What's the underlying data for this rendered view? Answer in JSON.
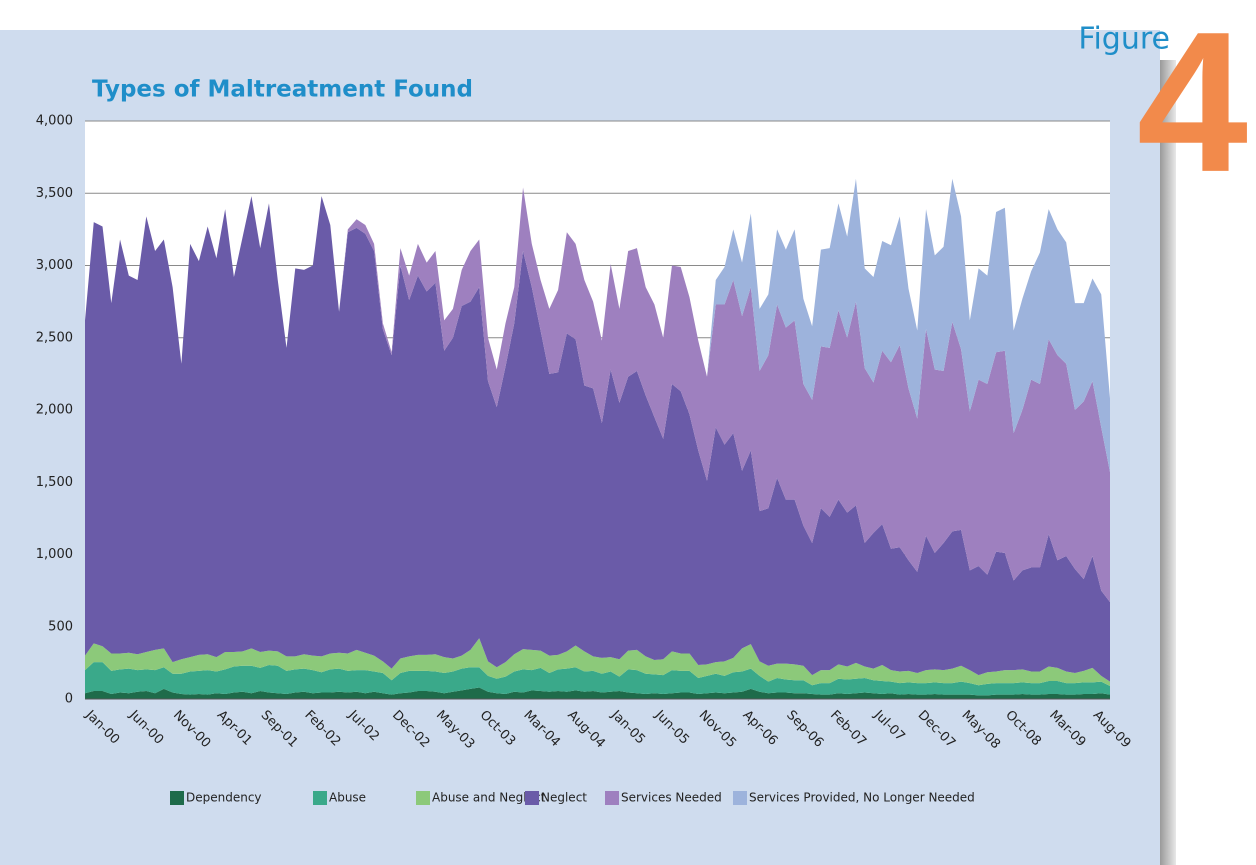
{
  "figure_label": "Figure",
  "figure_number": "4",
  "chart_data": {
    "type": "stacked_area",
    "title": "Types of Maltreatment Found",
    "categories": [
      null,
      "Jan-00",
      null,
      null,
      null,
      null,
      "Jun-00",
      null,
      null,
      null,
      null,
      "Nov-00",
      null,
      null,
      null,
      null,
      "Apr-01",
      null,
      null,
      null,
      null,
      "Sep-01",
      null,
      null,
      null,
      null,
      "Feb-02",
      null,
      null,
      null,
      null,
      "Jul-02",
      null,
      null,
      null,
      null,
      "Dec-02",
      null,
      null,
      null,
      null,
      "May-03",
      null,
      null,
      null,
      null,
      "Oct-03",
      null,
      null,
      null,
      null,
      "Mar-04",
      null,
      null,
      null,
      null,
      "Aug-04",
      null,
      null,
      null,
      null,
      "Jan-05",
      null,
      null,
      null,
      null,
      "Jun-05",
      null,
      null,
      null,
      null,
      "Nov-05",
      null,
      null,
      null,
      null,
      "Apr-06",
      null,
      null,
      null,
      null,
      "Sep-06",
      null,
      null,
      null,
      null,
      "Feb-07",
      null,
      null,
      null,
      null,
      "Jul-07",
      null,
      null,
      null,
      null,
      "Dec-07",
      null,
      null,
      null,
      null,
      "May-08",
      null,
      null,
      null,
      null,
      "Oct-08",
      null,
      null,
      null,
      null,
      "Mar-09",
      null,
      null,
      null,
      null,
      "Aug-09",
      null
    ],
    "series": [
      {
        "name": "Dependency",
        "color": "#1e6b4a",
        "values": [
          40,
          55,
          55,
          35,
          45,
          40,
          50,
          55,
          40,
          70,
          45,
          35,
          30,
          35,
          30,
          40,
          35,
          45,
          50,
          40,
          55,
          45,
          40,
          35,
          45,
          50,
          40,
          45,
          45,
          50,
          45,
          50,
          40,
          50,
          40,
          30,
          40,
          45,
          55,
          55,
          50,
          40,
          50,
          60,
          70,
          80,
          50,
          40,
          35,
          50,
          45,
          60,
          55,
          50,
          55,
          50,
          60,
          50,
          55,
          45,
          50,
          55,
          45,
          40,
          35,
          40,
          35,
          40,
          45,
          45,
          35,
          40,
          45,
          40,
          45,
          50,
          70,
          50,
          40,
          45,
          45,
          40,
          40,
          35,
          30,
          30,
          40,
          35,
          40,
          45,
          40,
          35,
          40,
          30,
          35,
          30,
          30,
          35,
          30,
          30,
          30,
          30,
          25,
          25,
          30,
          30,
          30,
          35,
          30,
          30,
          35,
          35,
          30,
          30,
          35,
          35,
          40,
          30
        ]
      },
      {
        "name": "Abuse",
        "color": "#3aa98a",
        "values": [
          160,
          200,
          200,
          160,
          160,
          170,
          150,
          150,
          160,
          150,
          130,
          140,
          160,
          160,
          170,
          150,
          170,
          180,
          180,
          190,
          160,
          190,
          190,
          160,
          160,
          160,
          160,
          140,
          160,
          160,
          150,
          150,
          160,
          140,
          140,
          100,
          140,
          150,
          140,
          140,
          140,
          140,
          140,
          150,
          150,
          140,
          110,
          100,
          120,
          140,
          160,
          140,
          160,
          130,
          150,
          160,
          160,
          140,
          140,
          130,
          140,
          100,
          160,
          160,
          140,
          130,
          130,
          160,
          150,
          150,
          110,
          120,
          130,
          120,
          140,
          140,
          140,
          110,
          80,
          100,
          90,
          90,
          90,
          60,
          80,
          80,
          100,
          100,
          100,
          100,
          90,
          90,
          80,
          80,
          80,
          80,
          80,
          80,
          80,
          80,
          90,
          80,
          70,
          80,
          80,
          80,
          80,
          80,
          80,
          80,
          90,
          90,
          80,
          80,
          80,
          80,
          80,
          60
        ]
      },
      {
        "name": "Abuse and Neglect",
        "color": "#8cc97a",
        "values": [
          100,
          130,
          110,
          120,
          110,
          110,
          110,
          120,
          140,
          130,
          80,
          100,
          100,
          110,
          110,
          100,
          120,
          100,
          100,
          120,
          110,
          100,
          100,
          100,
          90,
          100,
          100,
          110,
          110,
          110,
          120,
          140,
          120,
          110,
          80,
          80,
          100,
          100,
          110,
          110,
          120,
          110,
          90,
          90,
          120,
          200,
          100,
          80,
          100,
          120,
          140,
          140,
          120,
          120,
          100,
          120,
          150,
          140,
          100,
          110,
          100,
          120,
          130,
          140,
          120,
          100,
          110,
          130,
          120,
          120,
          90,
          80,
          80,
          100,
          100,
          160,
          170,
          100,
          110,
          100,
          110,
          110,
          100,
          70,
          90,
          90,
          100,
          90,
          110,
          80,
          80,
          110,
          80,
          80,
          80,
          70,
          90,
          90,
          90,
          100,
          110,
          90,
          70,
          80,
          80,
          90,
          90,
          90,
          80,
          80,
          100,
          90,
          80,
          70,
          80,
          100,
          40,
          30
        ]
      },
      {
        "name": "Neglect",
        "color": "#6a5ba8",
        "values": [
          2320,
          2915,
          2905,
          2425,
          2865,
          2610,
          2590,
          3015,
          2760,
          2830,
          2595,
          2045,
          2860,
          2725,
          2960,
          2760,
          3065,
          2595,
          2870,
          3130,
          2795,
          3095,
          2570,
          2135,
          2685,
          2660,
          2700,
          3185,
          2965,
          2360,
          2915,
          2920,
          2900,
          2800,
          2300,
          2170,
          2720,
          2465,
          2625,
          2515,
          2570,
          2120,
          2220,
          2420,
          2410,
          2430,
          1940,
          1800,
          2045,
          2290,
          2755,
          2510,
          2215,
          1950,
          1955,
          2200,
          2120,
          1840,
          1855,
          1625,
          1990,
          1775,
          1895,
          1930,
          1805,
          1680,
          1525,
          1850,
          1815,
          1655,
          1485,
          1270,
          1625,
          1500,
          1555,
          1230,
          1340,
          1040,
          1090,
          1285,
          1135,
          1140,
          970,
          915,
          1120,
          1060,
          1140,
          1065,
          1090,
          855,
          940,
          975,
          840,
          860,
          765,
          700,
          930,
          805,
          880,
          950,
          940,
          690,
          755,
          675,
          830,
          810,
          620,
          685,
          720,
          720,
          915,
          745,
          800,
          720,
          635,
          775,
          590,
          550
        ]
      },
      {
        "name": "Services Needed",
        "color": "#9e80bf",
        "values": [
          0,
          0,
          0,
          0,
          0,
          0,
          0,
          0,
          0,
          0,
          0,
          0,
          0,
          0,
          0,
          0,
          0,
          0,
          0,
          0,
          0,
          0,
          0,
          0,
          0,
          0,
          0,
          0,
          0,
          0,
          20,
          60,
          60,
          50,
          40,
          20,
          120,
          170,
          220,
          200,
          220,
          210,
          200,
          250,
          350,
          330,
          300,
          260,
          300,
          250,
          440,
          300,
          350,
          450,
          570,
          700,
          660,
          730,
          600,
          570,
          730,
          650,
          870,
          850,
          750,
          780,
          700,
          820,
          860,
          810,
          760,
          720,
          850,
          970,
          1060,
          1070,
          1130,
          970,
          1060,
          1200,
          1190,
          1240,
          980,
          990,
          1120,
          1170,
          1310,
          1210,
          1410,
          1210,
          1040,
          1200,
          1290,
          1400,
          1190,
          1060,
          1430,
          1270,
          1190,
          1450,
          1250,
          1100,
          1290,
          1320,
          1380,
          1400,
          1020,
          1110,
          1300,
          1270,
          1350,
          1420,
          1330,
          1100,
          1230,
          1210,
          1130,
          900
        ]
      },
      {
        "name": "Services Provided, No Longer Needed",
        "color": "#9db3dc",
        "values": [
          0,
          0,
          0,
          0,
          0,
          0,
          0,
          0,
          0,
          0,
          0,
          0,
          0,
          0,
          0,
          0,
          0,
          0,
          0,
          0,
          0,
          0,
          0,
          0,
          0,
          0,
          0,
          0,
          0,
          0,
          0,
          0,
          0,
          0,
          0,
          0,
          0,
          0,
          0,
          0,
          0,
          0,
          0,
          0,
          0,
          0,
          0,
          0,
          0,
          0,
          0,
          0,
          0,
          0,
          0,
          0,
          0,
          0,
          0,
          0,
          0,
          0,
          0,
          0,
          0,
          0,
          0,
          0,
          0,
          0,
          0,
          0,
          170,
          260,
          350,
          370,
          510,
          430,
          420,
          520,
          540,
          630,
          590,
          510,
          670,
          690,
          740,
          700,
          850,
          690,
          730,
          760,
          810,
          890,
          690,
          610,
          830,
          790,
          860,
          990,
          920,
          630,
          770,
          750,
          970,
          990,
          710,
          770,
          750,
          910,
          900,
          870,
          840,
          740,
          680,
          710,
          920,
          510
        ]
      }
    ],
    "ylim": [
      0,
      4000
    ],
    "yticks": [
      0,
      500,
      {
        "value": 1000,
        "label": "1,000"
      },
      {
        "value": 1500,
        "label": "1,500"
      },
      {
        "value": 2000,
        "label": "2,000"
      },
      {
        "value": 2500,
        "label": "2,500"
      },
      {
        "value": 3000,
        "label": "3,000"
      },
      {
        "value": 3500,
        "label": "3,500"
      },
      {
        "value": 4000,
        "label": "4,000"
      }
    ],
    "grid": true,
    "legend": "bottom"
  }
}
